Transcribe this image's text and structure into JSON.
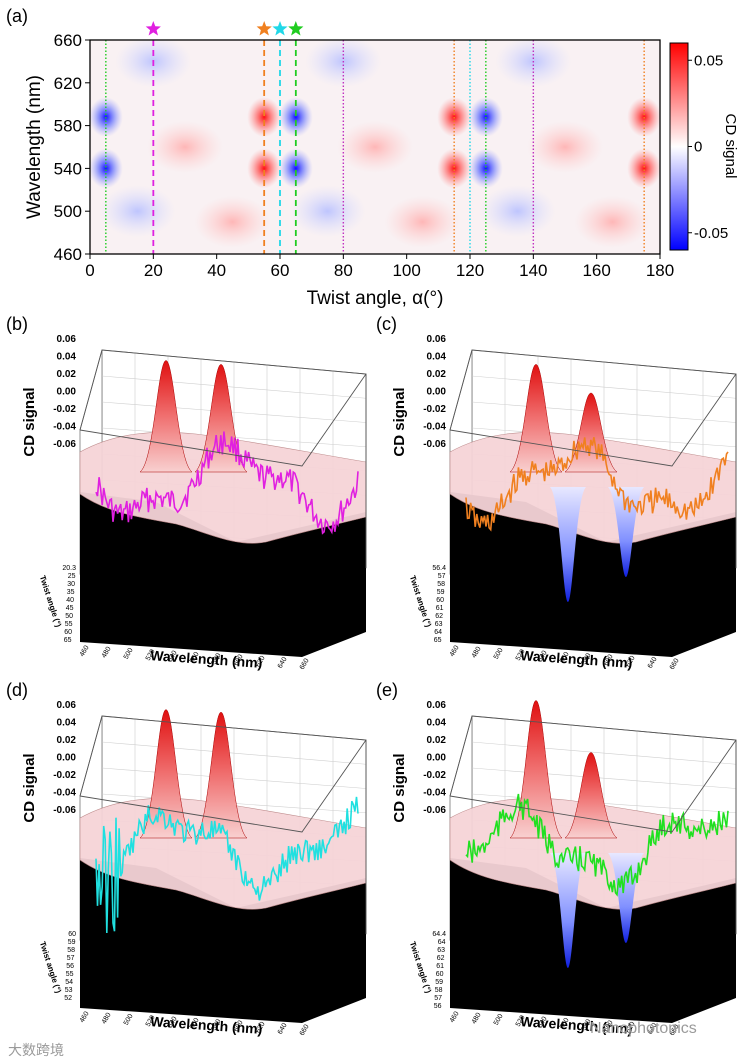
{
  "chart_data": [
    {
      "panel": "(a)",
      "type": "heatmap",
      "xlabel": "Twist angle, α(°)",
      "ylabel": "Wavelength (nm)",
      "xlim": [
        0,
        180
      ],
      "ylim": [
        460,
        660
      ],
      "xticks": [
        0,
        20,
        40,
        60,
        80,
        100,
        120,
        140,
        160,
        180
      ],
      "yticks": [
        460,
        500,
        540,
        580,
        620,
        660
      ],
      "colorbar": {
        "label": "CD signal",
        "range": [
          -0.06,
          0.06
        ],
        "tick_labels": [
          "0.05",
          "0",
          "-0.05"
        ],
        "tick_values": [
          0.05,
          0,
          -0.05
        ],
        "colors": [
          "#0000ff",
          "#ffffff",
          "#ff0000"
        ]
      },
      "blobs": [
        {
          "x": 5,
          "y": 540,
          "v": -0.06
        },
        {
          "x": 5,
          "y": 588,
          "v": -0.06
        },
        {
          "x": 55,
          "y": 540,
          "v": 0.06
        },
        {
          "x": 55,
          "y": 588,
          "v": 0.06
        },
        {
          "x": 65,
          "y": 540,
          "v": -0.06
        },
        {
          "x": 65,
          "y": 588,
          "v": -0.06
        },
        {
          "x": 115,
          "y": 540,
          "v": 0.06
        },
        {
          "x": 115,
          "y": 588,
          "v": 0.06
        },
        {
          "x": 125,
          "y": 540,
          "v": -0.06
        },
        {
          "x": 125,
          "y": 588,
          "v": -0.06
        },
        {
          "x": 175,
          "y": 540,
          "v": 0.06
        },
        {
          "x": 175,
          "y": 588,
          "v": 0.06
        },
        {
          "x": 30,
          "y": 560,
          "v": 0.02
        },
        {
          "x": 90,
          "y": 560,
          "v": 0.02
        },
        {
          "x": 150,
          "y": 560,
          "v": 0.02
        },
        {
          "x": 20,
          "y": 640,
          "v": -0.015
        },
        {
          "x": 80,
          "y": 640,
          "v": -0.015
        },
        {
          "x": 140,
          "y": 640,
          "v": -0.015
        },
        {
          "x": 45,
          "y": 490,
          "v": 0.02
        },
        {
          "x": 105,
          "y": 490,
          "v": 0.02
        },
        {
          "x": 165,
          "y": 490,
          "v": 0.02
        },
        {
          "x": 15,
          "y": 500,
          "v": -0.015
        },
        {
          "x": 75,
          "y": 500,
          "v": -0.015
        },
        {
          "x": 135,
          "y": 500,
          "v": -0.015
        }
      ],
      "dashed_markers": [
        {
          "x": 20,
          "color": "#e020e0",
          "star": true
        },
        {
          "x": 55,
          "color": "#f08020",
          "star": true
        },
        {
          "x": 60,
          "color": "#20d8e8",
          "star": true
        },
        {
          "x": 65,
          "color": "#20cc20",
          "star": true
        }
      ],
      "dotted_markers": [
        {
          "x": 5,
          "color": "#20cc20"
        },
        {
          "x": 80,
          "color": "#c030c0"
        },
        {
          "x": 115,
          "color": "#f08020"
        },
        {
          "x": 120,
          "color": "#20d8e8"
        },
        {
          "x": 125,
          "color": "#20cc20"
        },
        {
          "x": 140,
          "color": "#c030c0"
        },
        {
          "x": 175,
          "color": "#f08020"
        }
      ]
    },
    {
      "panel": "(b)",
      "type": "surface3d",
      "zlabel": "CD signal",
      "xlabel": "Wavelength (nm)",
      "ylabel": "Twist angle (°)",
      "zticks": [
        "0.06",
        "0.04",
        "0.02",
        "0.00",
        "-0.02",
        "-0.04",
        "-0.06"
      ],
      "xticks": [
        "460",
        "480",
        "500",
        "520",
        "540",
        "560",
        "580",
        "600",
        "620",
        "640",
        "660"
      ],
      "yticks": [
        "20.3",
        "25",
        "30",
        "35",
        "40",
        "45",
        "50",
        "55",
        "60",
        "65"
      ],
      "line_color": "#e020e0",
      "peaks": [
        0.055,
        0.052
      ]
    },
    {
      "panel": "(c)",
      "type": "surface3d",
      "zlabel": "CD signal",
      "xlabel": "Wavelength (nm)",
      "ylabel": "Twist angle (°)",
      "zticks": [
        "0.06",
        "0.04",
        "0.02",
        "0.00",
        "-0.02",
        "-0.04",
        "-0.06"
      ],
      "xticks": [
        "460",
        "480",
        "500",
        "520",
        "540",
        "560",
        "580",
        "600",
        "620",
        "640",
        "660"
      ],
      "yticks": [
        "56.4",
        "57",
        "58",
        "59",
        "60",
        "61",
        "62",
        "63",
        "64",
        "65"
      ],
      "line_color": "#f08020",
      "peaks": [
        0.052,
        0.03
      ]
    },
    {
      "panel": "(d)",
      "type": "surface3d",
      "zlabel": "CD signal",
      "xlabel": "Wavelength (nm)",
      "ylabel": "Twist angle (°)",
      "zticks": [
        "0.06",
        "0.04",
        "0.02",
        "0.00",
        "-0.02",
        "-0.04",
        "-0.06"
      ],
      "xticks": [
        "460",
        "480",
        "500",
        "520",
        "540",
        "560",
        "580",
        "600",
        "620",
        "640",
        "660"
      ],
      "yticks": [
        "60",
        "59",
        "58",
        "57",
        "56",
        "55",
        "54",
        "53",
        "52"
      ],
      "line_color": "#20e0e0",
      "peaks": [
        0.068,
        0.066
      ]
    },
    {
      "panel": "(e)",
      "type": "surface3d",
      "zlabel": "CD signal",
      "xlabel": "Wavelength (nm)",
      "ylabel": "Twist angle (°)",
      "zticks": [
        "0.06",
        "0.04",
        "0.02",
        "0.00",
        "-0.02",
        "-0.04",
        "-0.06"
      ],
      "xticks": [
        "460",
        "480",
        "500",
        "520",
        "540",
        "560",
        "580",
        "600",
        "620",
        "640",
        "660"
      ],
      "yticks": [
        "64.4",
        "64",
        "63",
        "62",
        "61",
        "60",
        "59",
        "58",
        "57",
        "56"
      ],
      "line_color": "#20e020",
      "peaks": [
        0.075,
        0.035
      ]
    }
  ],
  "watermarks": {
    "left": "大数跨境",
    "right": "Nanophotonics"
  }
}
